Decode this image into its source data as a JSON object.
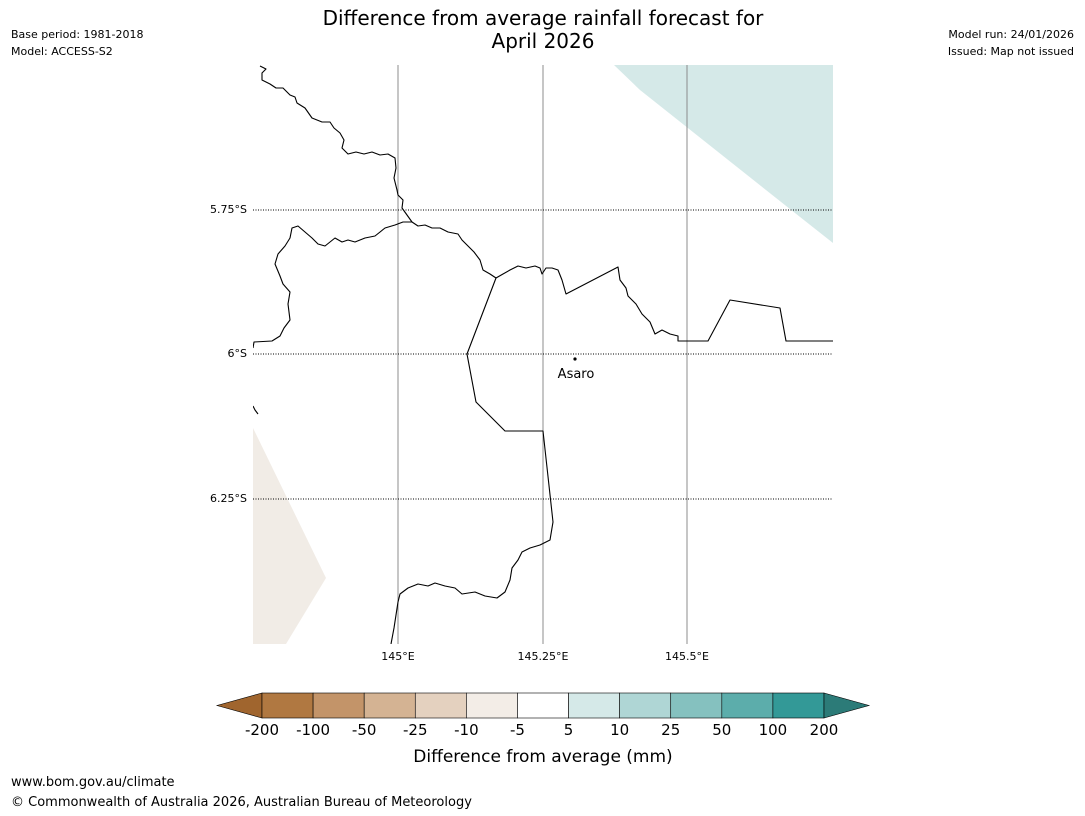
{
  "header": {
    "title_line1": "Difference from average rainfall forecast for",
    "title_line2": "April 2026",
    "base_period": "Base period: 1981-2018",
    "model": "Model: ACCESS-S2",
    "model_run": "Model run: 24/01/2026",
    "issued": "Issued: Map not issued"
  },
  "map": {
    "lat_labels": [
      "5.75°S",
      "6°S",
      "6.25°S"
    ],
    "lon_labels": [
      "145°E",
      "145.25°E",
      "145.5°E"
    ],
    "place_label": "Asaro"
  },
  "colorbar": {
    "ticks": [
      "-200",
      "-100",
      "-50",
      "-25",
      "-10",
      "-5",
      "5",
      "10",
      "25",
      "50",
      "100",
      "200"
    ],
    "label": "Difference from average (mm)",
    "colors": [
      "#a0652e",
      "#b07841",
      "#c39469",
      "#d4b393",
      "#e4d1bf",
      "#f3ede7",
      "#ffffff",
      "#d5e9e8",
      "#afd6d5",
      "#85c1bf",
      "#5cadab",
      "#339997",
      "#2c7b78"
    ]
  },
  "footer": {
    "url": "www.bom.gov.au/climate",
    "copyright": "© Commonwealth of Australia 2026, Australian Bureau of Meteorology"
  }
}
